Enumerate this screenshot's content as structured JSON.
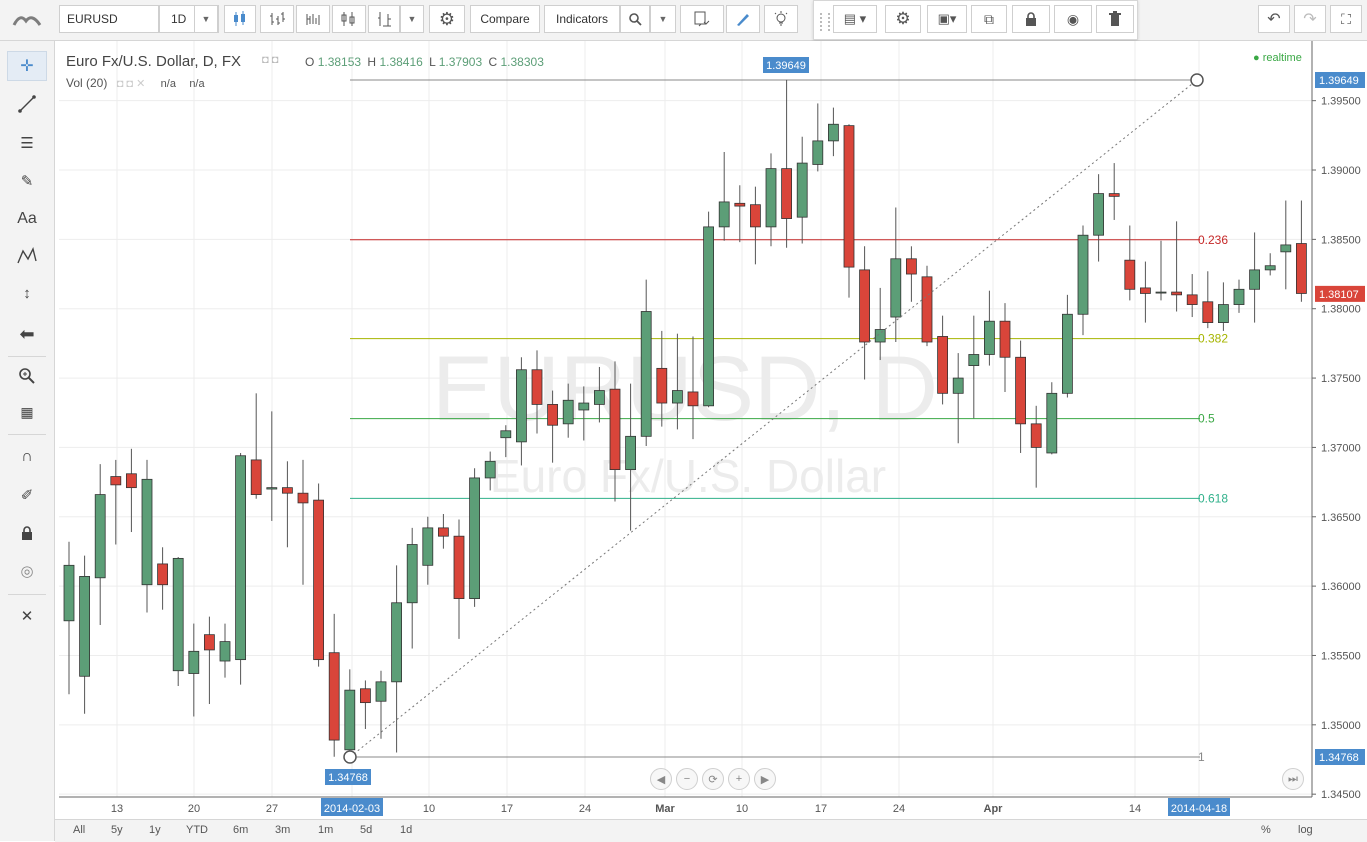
{
  "toolbar": {
    "symbol": "EURUSD",
    "interval": "1D",
    "compare_label": "Compare",
    "indicators_label": "Indicators"
  },
  "legend": {
    "title": "Euro Fx/U.S. Dollar, D, FX",
    "o_label": "O",
    "o_value": "1.38153",
    "h_label": "H",
    "h_value": "1.38416",
    "l_label": "L",
    "l_value": "1.37903",
    "c_label": "C",
    "c_value": "1.38303",
    "vol_label": "Vol (20)",
    "vol_value1": "n/a",
    "vol_value2": "n/a",
    "realtime": "realtime"
  },
  "watermark": {
    "symbol": "EURUSD, D",
    "name": "Euro Fx/U.S. Dollar"
  },
  "chart_data": {
    "type": "candlestick",
    "price_axis_labels": [
      "1.39500",
      "1.39000",
      "1.38500",
      "1.38000",
      "1.37500",
      "1.37000",
      "1.36500",
      "1.36000",
      "1.35500",
      "1.35000",
      "1.34500"
    ],
    "current_price": "1.38107",
    "fib_high_label": "1.39649",
    "fib_low_label": "1.34768",
    "fib_levels": [
      {
        "label": "0.236",
        "price": 1.38497,
        "color": "#c62828"
      },
      {
        "label": "0.382",
        "price": 1.37784,
        "color": "#a6b500"
      },
      {
        "label": "0.5",
        "price": 1.37208,
        "color": "#3aa845"
      },
      {
        "label": "0.618",
        "price": 1.36633,
        "color": "#2fb08a"
      },
      {
        "label": "1",
        "price": 1.34768,
        "color": "#888888"
      }
    ],
    "x_labels": [
      "13",
      "20",
      "27",
      "2014-02-03",
      "10",
      "17",
      "24",
      "Mar",
      "10",
      "17",
      "24",
      "Apr",
      "14",
      "2014-04-18"
    ],
    "candles": [
      {
        "o": 1.3575,
        "h": 1.3632,
        "l": 1.3522,
        "c": 1.3615
      },
      {
        "o": 1.3535,
        "h": 1.3622,
        "l": 1.3508,
        "c": 1.3607
      },
      {
        "o": 1.3606,
        "h": 1.3688,
        "l": 1.3572,
        "c": 1.3666
      },
      {
        "o": 1.3679,
        "h": 1.3691,
        "l": 1.363,
        "c": 1.3673
      },
      {
        "o": 1.3681,
        "h": 1.3699,
        "l": 1.3639,
        "c": 1.3671
      },
      {
        "o": 1.3601,
        "h": 1.3691,
        "l": 1.3581,
        "c": 1.3677
      },
      {
        "o": 1.3616,
        "h": 1.3628,
        "l": 1.3583,
        "c": 1.3601
      },
      {
        "o": 1.3539,
        "h": 1.3621,
        "l": 1.3528,
        "c": 1.362
      },
      {
        "o": 1.3537,
        "h": 1.3573,
        "l": 1.3506,
        "c": 1.3553
      },
      {
        "o": 1.3565,
        "h": 1.3578,
        "l": 1.3515,
        "c": 1.3554
      },
      {
        "o": 1.3546,
        "h": 1.3573,
        "l": 1.3534,
        "c": 1.356
      },
      {
        "o": 1.3547,
        "h": 1.3696,
        "l": 1.3529,
        "c": 1.3694
      },
      {
        "o": 1.3691,
        "h": 1.3739,
        "l": 1.3663,
        "c": 1.3666
      },
      {
        "o": 1.367,
        "h": 1.3726,
        "l": 1.3647,
        "c": 1.3671
      },
      {
        "o": 1.3671,
        "h": 1.369,
        "l": 1.3628,
        "c": 1.3667
      },
      {
        "o": 1.3667,
        "h": 1.3691,
        "l": 1.3601,
        "c": 1.366
      },
      {
        "o": 1.3662,
        "h": 1.3674,
        "l": 1.3542,
        "c": 1.3547
      },
      {
        "o": 1.3552,
        "h": 1.358,
        "l": 1.3477,
        "c": 1.3489
      },
      {
        "o": 1.3482,
        "h": 1.354,
        "l": 1.3477,
        "c": 1.3525
      },
      {
        "o": 1.3526,
        "h": 1.3532,
        "l": 1.3497,
        "c": 1.3516
      },
      {
        "o": 1.3517,
        "h": 1.3539,
        "l": 1.349,
        "c": 1.3531
      },
      {
        "o": 1.3531,
        "h": 1.3615,
        "l": 1.348,
        "c": 1.3588
      },
      {
        "o": 1.3588,
        "h": 1.3642,
        "l": 1.3555,
        "c": 1.363
      },
      {
        "o": 1.3615,
        "h": 1.365,
        "l": 1.3601,
        "c": 1.3642
      },
      {
        "o": 1.3642,
        "h": 1.3652,
        "l": 1.3627,
        "c": 1.3636
      },
      {
        "o": 1.3636,
        "h": 1.3648,
        "l": 1.3562,
        "c": 1.3591
      },
      {
        "o": 1.3591,
        "h": 1.3685,
        "l": 1.3585,
        "c": 1.3678
      },
      {
        "o": 1.3678,
        "h": 1.3697,
        "l": 1.3669,
        "c": 1.369
      },
      {
        "o": 1.3707,
        "h": 1.3716,
        "l": 1.3693,
        "c": 1.3712
      },
      {
        "o": 1.3704,
        "h": 1.3765,
        "l": 1.3687,
        "c": 1.3756
      },
      {
        "o": 1.3756,
        "h": 1.377,
        "l": 1.371,
        "c": 1.3731
      },
      {
        "o": 1.3731,
        "h": 1.3741,
        "l": 1.3689,
        "c": 1.3716
      },
      {
        "o": 1.3717,
        "h": 1.3746,
        "l": 1.3707,
        "c": 1.3734
      },
      {
        "o": 1.3727,
        "h": 1.3744,
        "l": 1.3705,
        "c": 1.3732
      },
      {
        "o": 1.3731,
        "h": 1.3758,
        "l": 1.3718,
        "c": 1.3741
      },
      {
        "o": 1.3742,
        "h": 1.3762,
        "l": 1.3661,
        "c": 1.3684
      },
      {
        "o": 1.3684,
        "h": 1.3746,
        "l": 1.364,
        "c": 1.3708
      },
      {
        "o": 1.3708,
        "h": 1.3821,
        "l": 1.3701,
        "c": 1.3798
      },
      {
        "o": 1.3757,
        "h": 1.3784,
        "l": 1.3715,
        "c": 1.3732
      },
      {
        "o": 1.3732,
        "h": 1.3782,
        "l": 1.3713,
        "c": 1.3741
      },
      {
        "o": 1.374,
        "h": 1.378,
        "l": 1.3706,
        "c": 1.373
      },
      {
        "o": 1.373,
        "h": 1.387,
        "l": 1.3729,
        "c": 1.3859
      },
      {
        "o": 1.3859,
        "h": 1.3913,
        "l": 1.3849,
        "c": 1.3877
      },
      {
        "o": 1.3876,
        "h": 1.3889,
        "l": 1.3848,
        "c": 1.3874
      },
      {
        "o": 1.3875,
        "h": 1.3888,
        "l": 1.3832,
        "c": 1.3859
      },
      {
        "o": 1.3859,
        "h": 1.3912,
        "l": 1.3845,
        "c": 1.3901
      },
      {
        "o": 1.3901,
        "h": 1.3965,
        "l": 1.3844,
        "c": 1.3865
      },
      {
        "o": 1.3866,
        "h": 1.3924,
        "l": 1.3847,
        "c": 1.3905
      },
      {
        "o": 1.3904,
        "h": 1.3948,
        "l": 1.3899,
        "c": 1.3921
      },
      {
        "o": 1.3921,
        "h": 1.3945,
        "l": 1.391,
        "c": 1.3933
      },
      {
        "o": 1.3932,
        "h": 1.3933,
        "l": 1.3808,
        "c": 1.383
      },
      {
        "o": 1.3828,
        "h": 1.3845,
        "l": 1.3749,
        "c": 1.3776
      },
      {
        "o": 1.3776,
        "h": 1.3815,
        "l": 1.3763,
        "c": 1.3785
      },
      {
        "o": 1.3794,
        "h": 1.3873,
        "l": 1.3776,
        "c": 1.3836
      },
      {
        "o": 1.3836,
        "h": 1.3845,
        "l": 1.3805,
        "c": 1.3825
      },
      {
        "o": 1.3823,
        "h": 1.3831,
        "l": 1.3773,
        "c": 1.3776
      },
      {
        "o": 1.378,
        "h": 1.3795,
        "l": 1.3731,
        "c": 1.3739
      },
      {
        "o": 1.3739,
        "h": 1.3768,
        "l": 1.3703,
        "c": 1.375
      },
      {
        "o": 1.3759,
        "h": 1.3795,
        "l": 1.3721,
        "c": 1.3767
      },
      {
        "o": 1.3767,
        "h": 1.3813,
        "l": 1.3759,
        "c": 1.3791
      },
      {
        "o": 1.3791,
        "h": 1.3804,
        "l": 1.374,
        "c": 1.3765
      },
      {
        "o": 1.3765,
        "h": 1.3777,
        "l": 1.3696,
        "c": 1.3717
      },
      {
        "o": 1.3717,
        "h": 1.373,
        "l": 1.3671,
        "c": 1.37
      },
      {
        "o": 1.3696,
        "h": 1.3747,
        "l": 1.3695,
        "c": 1.3739
      },
      {
        "o": 1.3739,
        "h": 1.381,
        "l": 1.3736,
        "c": 1.3796
      },
      {
        "o": 1.3796,
        "h": 1.386,
        "l": 1.3781,
        "c": 1.3853
      },
      {
        "o": 1.3853,
        "h": 1.3897,
        "l": 1.3834,
        "c": 1.3883
      },
      {
        "o": 1.3883,
        "h": 1.3905,
        "l": 1.3864,
        "c": 1.3881
      },
      {
        "o": 1.3835,
        "h": 1.386,
        "l": 1.3806,
        "c": 1.3814
      },
      {
        "o": 1.3815,
        "h": 1.3834,
        "l": 1.379,
        "c": 1.3811
      },
      {
        "o": 1.3812,
        "h": 1.3849,
        "l": 1.3806,
        "c": 1.3812
      },
      {
        "o": 1.3812,
        "h": 1.3863,
        "l": 1.3798,
        "c": 1.381
      },
      {
        "o": 1.381,
        "h": 1.3825,
        "l": 1.3794,
        "c": 1.3803
      },
      {
        "o": 1.3805,
        "h": 1.3827,
        "l": 1.3786,
        "c": 1.379
      },
      {
        "o": 1.379,
        "h": 1.3819,
        "l": 1.3784,
        "c": 1.3803
      },
      {
        "o": 1.3803,
        "h": 1.3821,
        "l": 1.3797,
        "c": 1.3814
      },
      {
        "o": 1.3814,
        "h": 1.3855,
        "l": 1.379,
        "c": 1.3828
      },
      {
        "o": 1.3828,
        "h": 1.384,
        "l": 1.3824,
        "c": 1.3831
      },
      {
        "o": 1.3841,
        "h": 1.3878,
        "l": 1.3814,
        "c": 1.3846
      },
      {
        "o": 1.3847,
        "h": 1.3878,
        "l": 1.3805,
        "c": 1.3811
      }
    ]
  },
  "bottom": {
    "ranges": [
      "All",
      "5y",
      "1y",
      "YTD",
      "6m",
      "3m",
      "1m",
      "5d",
      "1d"
    ],
    "percent": "%",
    "log": "log"
  },
  "colors": {
    "up": "#5c9e77",
    "down": "#d9453a",
    "accent": "#4a8bcc"
  }
}
